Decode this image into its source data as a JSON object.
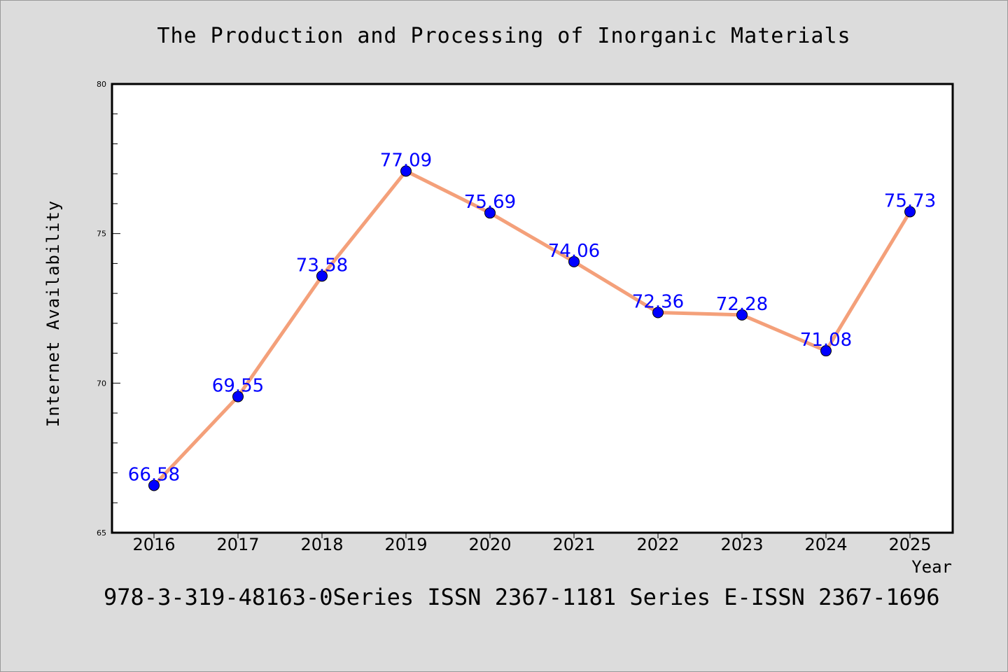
{
  "chart_data": {
    "type": "line",
    "title": "The Production and Processing of Inorganic Materials",
    "xlabel": "Year",
    "ylabel": "Internet Availability",
    "categories": [
      "2016",
      "2017",
      "2018",
      "2019",
      "2020",
      "2021",
      "2022",
      "2023",
      "2024",
      "2025"
    ],
    "series": [
      {
        "values": [
          66.58,
          69.55,
          73.58,
          77.09,
          75.69,
          74.06,
          72.36,
          72.28,
          71.08,
          75.73
        ],
        "line_color": "#f4a07a",
        "marker_color": "#0000ff"
      }
    ],
    "data_labels": [
      "66.58",
      "69.55",
      "73.58",
      "77.09",
      "75.69",
      "74.06",
      "72.36",
      "72.28",
      "71.08",
      "75.73"
    ],
    "ylim": [
      65,
      80
    ],
    "yticks": [
      "65",
      "70",
      "75",
      "80"
    ],
    "grid": false
  },
  "footer": {
    "text": "978-3-319-48163-0Series ISSN 2367-1181 Series E-ISSN 2367-1696"
  },
  "colors": {
    "background": "#dcdcdc",
    "plot_area": "#ffffff",
    "data_label": "#0000ff"
  }
}
